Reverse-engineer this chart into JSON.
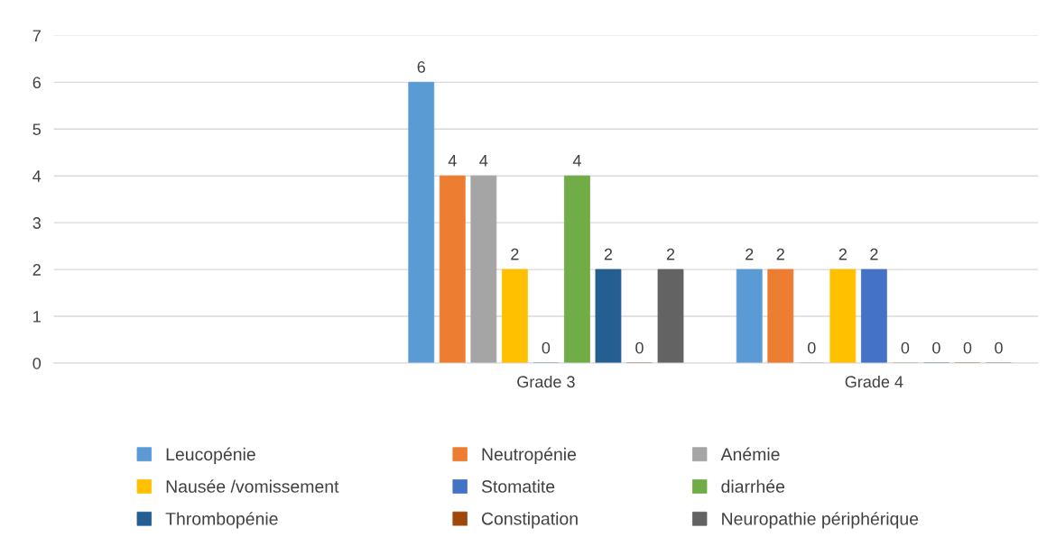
{
  "chart_data": {
    "type": "bar",
    "categories": [
      null,
      "Grade 3",
      "Grade 4"
    ],
    "series": [
      {
        "name": "Leucopénie",
        "color": "#5b9bd5",
        "values": [
          null,
          6,
          2
        ]
      },
      {
        "name": "Neutropénie",
        "color": "#ed7d31",
        "values": [
          null,
          4,
          2
        ]
      },
      {
        "name": "Anémie",
        "color": "#a5a5a5",
        "values": [
          null,
          4,
          0
        ]
      },
      {
        "name": "Nausée /vomissement",
        "color": "#ffc000",
        "values": [
          null,
          2,
          2
        ]
      },
      {
        "name": "Stomatite",
        "color": "#4472c4",
        "values": [
          null,
          0,
          2
        ]
      },
      {
        "name": "diarrhée",
        "color": "#70ad47",
        "values": [
          null,
          4,
          0
        ]
      },
      {
        "name": "Thrombopénie",
        "color": "#255e91",
        "values": [
          null,
          2,
          0
        ]
      },
      {
        "name": "Constipation",
        "color": "#9e480e",
        "values": [
          null,
          0,
          0
        ]
      },
      {
        "name": "Neuropathie périphérique",
        "color": "#636363",
        "values": [
          null,
          2,
          0
        ]
      }
    ],
    "ylim": [
      0,
      7
    ],
    "yticks": [
      0,
      1,
      2,
      3,
      4,
      5,
      6,
      7
    ],
    "grid": "y",
    "legend": "bottom",
    "data_labels": true
  }
}
